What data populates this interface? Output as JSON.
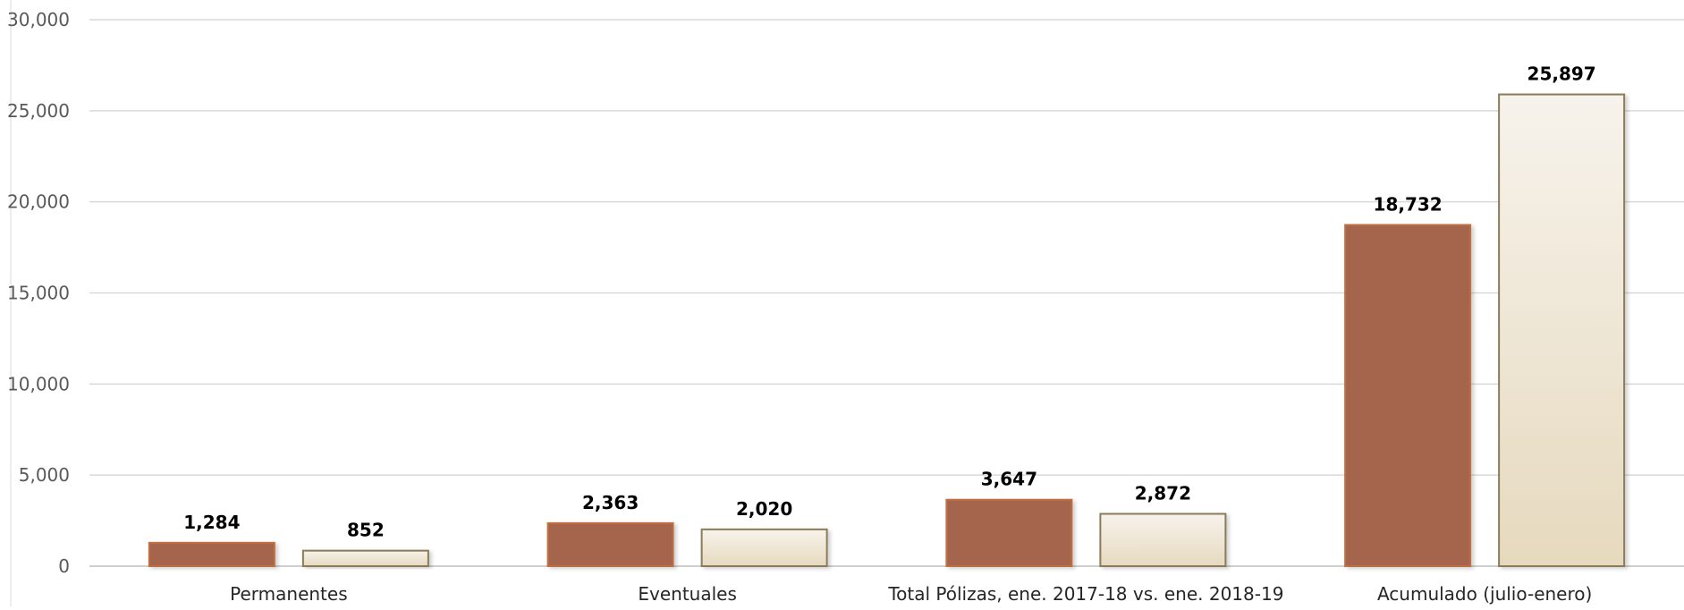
{
  "chart_data": {
    "type": "bar",
    "categories": [
      "Permanentes",
      "Eventuales",
      "Total Pólizas, ene. 2017-18  vs. ene. 2018-19",
      "Acumulado (julio-enero)"
    ],
    "series": [
      {
        "values": [
          1284,
          2363,
          3647,
          18732
        ],
        "color": "#a5654e",
        "border": "#c0703f"
      },
      {
        "values": [
          852,
          2020,
          2872,
          25897
        ],
        "color_top": "#f7f3ec",
        "color_bottom": "#e6d9be",
        "border": "#8a7c5a"
      }
    ],
    "data_labels": [
      [
        "1,284",
        "2,363",
        "3,647",
        "18,732"
      ],
      [
        "852",
        "2,020",
        "2,872",
        "25,897"
      ]
    ],
    "y_ticks": [
      "0",
      "5,000",
      "10,000",
      "15,000",
      "20,000",
      "25,000",
      "30,000"
    ],
    "ylim": [
      0,
      30000
    ],
    "grid": true,
    "legend": "none",
    "title": "",
    "xlabel": "",
    "ylabel": ""
  }
}
